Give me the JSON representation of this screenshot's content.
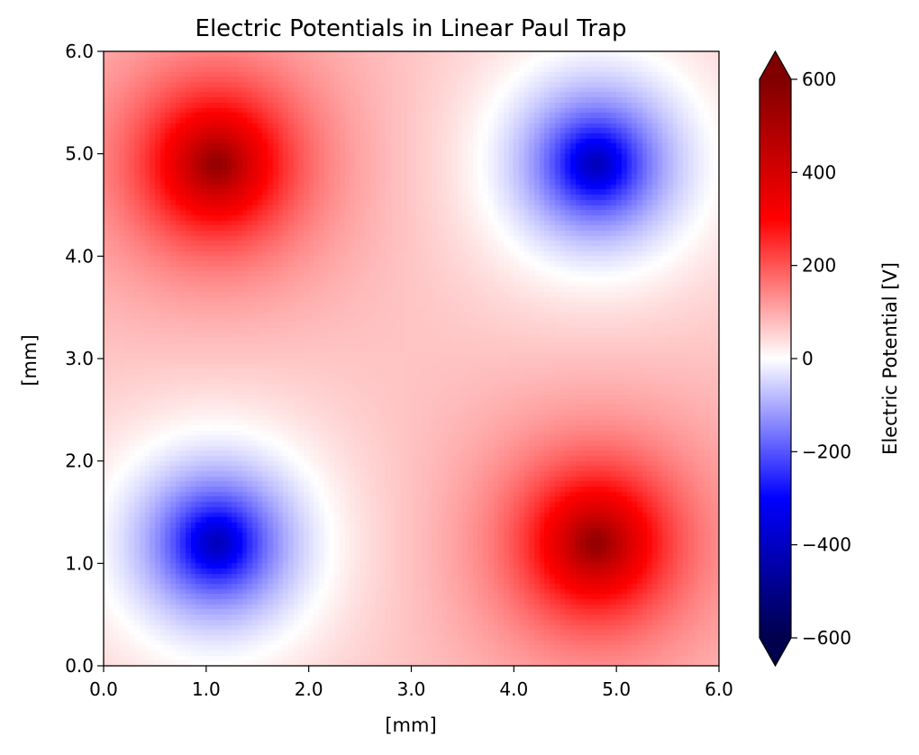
{
  "chart_data": {
    "type": "heatmap",
    "title": "Electric Potentials in Linear Paul Trap",
    "xlabel": "[mm]",
    "ylabel": "[mm]",
    "xlim": [
      0.0,
      6.0
    ],
    "ylim": [
      0.0,
      6.0
    ],
    "xticks": [
      "0.0",
      "1.0",
      "2.0",
      "3.0",
      "4.0",
      "5.0",
      "6.0"
    ],
    "yticks": [
      "0.0",
      "1.0",
      "2.0",
      "3.0",
      "4.0",
      "5.0",
      "6.0"
    ],
    "colormap": "seismic",
    "colorbar": {
      "label": "Electric Potential [V]",
      "ticks": [
        600,
        400,
        200,
        0,
        -200,
        -400,
        -600
      ],
      "tick_labels": [
        "600",
        "400",
        "200",
        "0",
        "−200",
        "−400",
        "−600"
      ],
      "range": [
        -600,
        600
      ],
      "extend": "both",
      "colors": {
        "min_extend": "#00004c",
        "blue": "#0000ff",
        "center": "#ffffff",
        "red": "#ff0000",
        "max_extend": "#800000"
      }
    },
    "sources": [
      {
        "x": 1.1,
        "y": 4.9,
        "sign": "positive"
      },
      {
        "x": 4.8,
        "y": 4.9,
        "sign": "negative"
      },
      {
        "x": 1.1,
        "y": 1.2,
        "sign": "negative"
      },
      {
        "x": 4.8,
        "y": 1.2,
        "sign": "positive"
      }
    ]
  }
}
